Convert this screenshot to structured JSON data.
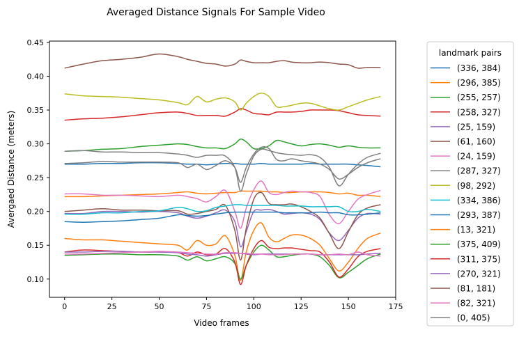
{
  "chart_data": {
    "type": "line",
    "title": "Averaged Distance Signals For Sample Video",
    "xlabel": "Video frames",
    "ylabel": "Avergaed Distance (meters)",
    "xlim": [
      -8,
      175
    ],
    "ylim": [
      0.073,
      0.452
    ],
    "x_ticks": [
      0,
      25,
      50,
      75,
      100,
      125,
      150,
      175
    ],
    "x_tick_labels": [
      "0",
      "25",
      "50",
      "75",
      "100",
      "125",
      "150",
      "175"
    ],
    "y_ticks": [
      0.1,
      0.15,
      0.2,
      0.25,
      0.3,
      0.35,
      0.4,
      0.45
    ],
    "y_tick_labels": [
      "0.10",
      "0.15",
      "0.20",
      "0.25",
      "0.30",
      "0.35",
      "0.40",
      "0.45"
    ],
    "grid": false,
    "legend": {
      "title": "landmark pairs",
      "position": "outside-right"
    },
    "x_frames": [
      0,
      10,
      20,
      30,
      40,
      50,
      60,
      65,
      70,
      75,
      80,
      85,
      90,
      93,
      96,
      100,
      104,
      108,
      112,
      116,
      120,
      125,
      130,
      135,
      140,
      145,
      150,
      155,
      160,
      167
    ],
    "series": [
      {
        "name": "(336, 384)",
        "color": "#1f77b4",
        "values": [
          0.27,
          0.27,
          0.271,
          0.271,
          0.272,
          0.272,
          0.271,
          0.27,
          0.27,
          0.269,
          0.27,
          0.271,
          0.271,
          0.27,
          0.27,
          0.27,
          0.271,
          0.27,
          0.27,
          0.27,
          0.27,
          0.27,
          0.271,
          0.27,
          0.27,
          0.27,
          0.27,
          0.269,
          0.268,
          0.266
        ]
      },
      {
        "name": "(296, 385)",
        "color": "#ff7f0e",
        "values": [
          0.222,
          0.222,
          0.223,
          0.224,
          0.225,
          0.226,
          0.228,
          0.229,
          0.227,
          0.226,
          0.227,
          0.228,
          0.228,
          0.23,
          0.23,
          0.23,
          0.23,
          0.229,
          0.229,
          0.228,
          0.228,
          0.229,
          0.229,
          0.229,
          0.228,
          0.226,
          0.227,
          0.224,
          0.224,
          0.222
        ]
      },
      {
        "name": "(255, 257)",
        "color": "#2ca02c",
        "values": [
          0.289,
          0.29,
          0.292,
          0.293,
          0.296,
          0.298,
          0.3,
          0.299,
          0.296,
          0.294,
          0.294,
          0.293,
          0.3,
          0.307,
          0.303,
          0.293,
          0.293,
          0.297,
          0.305,
          0.303,
          0.3,
          0.297,
          0.299,
          0.3,
          0.298,
          0.295,
          0.297,
          0.295,
          0.294,
          0.294
        ]
      },
      {
        "name": "(258, 327)",
        "color": "#d62728",
        "values": [
          0.335,
          0.337,
          0.338,
          0.34,
          0.343,
          0.346,
          0.347,
          0.345,
          0.342,
          0.342,
          0.342,
          0.341,
          0.347,
          0.352,
          0.35,
          0.345,
          0.344,
          0.343,
          0.347,
          0.347,
          0.347,
          0.348,
          0.35,
          0.35,
          0.35,
          0.349,
          0.346,
          0.343,
          0.342,
          0.341
        ]
      },
      {
        "name": "(25, 159)",
        "color": "#9467bd",
        "values": [
          0.197,
          0.197,
          0.2,
          0.2,
          0.199,
          0.2,
          0.198,
          0.193,
          0.19,
          0.193,
          0.198,
          0.202,
          0.185,
          0.148,
          0.17,
          0.2,
          0.202,
          0.203,
          0.2,
          0.196,
          0.197,
          0.198,
          0.196,
          0.188,
          0.168,
          0.157,
          0.172,
          0.19,
          0.197,
          0.196
        ]
      },
      {
        "name": "(61, 160)",
        "color": "#8c564b",
        "values": [
          0.2,
          0.202,
          0.204,
          0.202,
          0.202,
          0.201,
          0.201,
          0.196,
          0.197,
          0.2,
          0.203,
          0.209,
          0.172,
          0.128,
          0.175,
          0.218,
          0.228,
          0.212,
          0.21,
          0.21,
          0.211,
          0.207,
          0.2,
          0.19,
          0.167,
          0.145,
          0.17,
          0.195,
          0.205,
          0.21
        ]
      },
      {
        "name": "(24, 159)",
        "color": "#e377c2",
        "values": [
          0.226,
          0.226,
          0.224,
          0.224,
          0.223,
          0.222,
          0.224,
          0.222,
          0.219,
          0.214,
          0.222,
          0.231,
          0.2,
          0.175,
          0.205,
          0.232,
          0.245,
          0.228,
          0.225,
          0.228,
          0.23,
          0.229,
          0.228,
          0.222,
          0.195,
          0.182,
          0.2,
          0.218,
          0.225,
          0.231
        ]
      },
      {
        "name": "(287, 327)",
        "color": "#7f7f7f",
        "values": [
          0.289,
          0.29,
          0.288,
          0.288,
          0.287,
          0.287,
          0.285,
          0.283,
          0.28,
          0.283,
          0.283,
          0.282,
          0.265,
          0.23,
          0.255,
          0.282,
          0.292,
          0.29,
          0.287,
          0.285,
          0.284,
          0.283,
          0.284,
          0.28,
          0.265,
          0.238,
          0.255,
          0.27,
          0.28,
          0.286
        ]
      },
      {
        "name": "(98, 292)",
        "color": "#bcbd22",
        "values": [
          0.374,
          0.371,
          0.37,
          0.369,
          0.367,
          0.365,
          0.361,
          0.358,
          0.37,
          0.362,
          0.366,
          0.368,
          0.362,
          0.35,
          0.36,
          0.37,
          0.375,
          0.37,
          0.355,
          0.355,
          0.357,
          0.36,
          0.36,
          0.356,
          0.352,
          0.35,
          0.355,
          0.36,
          0.365,
          0.37
        ]
      },
      {
        "name": "(334, 386)",
        "color": "#17becf",
        "values": [
          0.196,
          0.196,
          0.198,
          0.198,
          0.2,
          0.201,
          0.206,
          0.204,
          0.2,
          0.201,
          0.206,
          0.208,
          0.21,
          0.21,
          0.209,
          0.209,
          0.209,
          0.209,
          0.209,
          0.208,
          0.208,
          0.208,
          0.207,
          0.207,
          0.207,
          0.207,
          0.2,
          0.2,
          0.203,
          0.2
        ]
      },
      {
        "name": "(293, 387)",
        "color": "#1f77b4",
        "values": [
          0.185,
          0.184,
          0.185,
          0.186,
          0.188,
          0.19,
          0.195,
          0.194,
          0.193,
          0.194,
          0.196,
          0.198,
          0.199,
          0.199,
          0.199,
          0.199,
          0.199,
          0.199,
          0.199,
          0.198,
          0.198,
          0.198,
          0.198,
          0.199,
          0.198,
          0.198,
          0.195,
          0.195,
          0.196,
          0.198
        ]
      },
      {
        "name": "(13, 321)",
        "color": "#ff7f0e",
        "values": [
          0.16,
          0.158,
          0.158,
          0.156,
          0.154,
          0.152,
          0.15,
          0.143,
          0.157,
          0.15,
          0.152,
          0.164,
          0.135,
          0.098,
          0.14,
          0.172,
          0.183,
          0.162,
          0.155,
          0.16,
          0.165,
          0.165,
          0.16,
          0.15,
          0.13,
          0.112,
          0.125,
          0.145,
          0.16,
          0.168
        ]
      },
      {
        "name": "(375, 409)",
        "color": "#2ca02c",
        "values": [
          0.135,
          0.136,
          0.137,
          0.137,
          0.136,
          0.136,
          0.134,
          0.128,
          0.133,
          0.127,
          0.13,
          0.133,
          0.123,
          0.1,
          0.12,
          0.14,
          0.15,
          0.143,
          0.133,
          0.133,
          0.135,
          0.137,
          0.137,
          0.133,
          0.12,
          0.102,
          0.11,
          0.12,
          0.13,
          0.137
        ]
      },
      {
        "name": "(311, 375)",
        "color": "#d62728",
        "values": [
          0.14,
          0.143,
          0.142,
          0.141,
          0.14,
          0.14,
          0.139,
          0.134,
          0.14,
          0.136,
          0.137,
          0.145,
          0.125,
          0.092,
          0.12,
          0.145,
          0.157,
          0.147,
          0.145,
          0.146,
          0.146,
          0.144,
          0.142,
          0.14,
          0.125,
          0.103,
          0.115,
          0.133,
          0.141,
          0.145
        ]
      },
      {
        "name": "(270, 321)",
        "color": "#9467bd",
        "values": [
          0.14,
          0.14,
          0.141,
          0.141,
          0.14,
          0.14,
          0.139,
          0.137,
          0.136,
          0.134,
          0.136,
          0.138,
          0.138,
          0.138,
          0.137,
          0.136,
          0.137,
          0.137,
          0.137,
          0.137,
          0.137,
          0.137,
          0.137,
          0.136,
          0.136,
          0.136,
          0.136,
          0.136,
          0.137,
          0.138
        ]
      },
      {
        "name": "(81, 181)",
        "color": "#8c564b",
        "values": [
          0.412,
          0.418,
          0.423,
          0.425,
          0.428,
          0.433,
          0.429,
          0.425,
          0.422,
          0.419,
          0.418,
          0.415,
          0.418,
          0.424,
          0.422,
          0.42,
          0.42,
          0.42,
          0.422,
          0.423,
          0.421,
          0.42,
          0.42,
          0.421,
          0.42,
          0.418,
          0.417,
          0.412,
          0.413,
          0.413
        ]
      },
      {
        "name": "(82, 321)",
        "color": "#e377c2",
        "values": [
          0.137,
          0.137,
          0.138,
          0.139,
          0.14,
          0.141,
          0.14,
          0.139,
          0.138,
          0.137,
          0.137,
          0.139,
          0.139,
          0.138,
          0.138,
          0.137,
          0.137,
          0.136,
          0.136,
          0.136,
          0.137,
          0.137,
          0.137,
          0.136,
          0.136,
          0.137,
          0.136,
          0.14,
          0.136,
          0.134
        ]
      },
      {
        "name": "(0, 405)",
        "color": "#7f7f7f",
        "values": [
          0.271,
          0.272,
          0.274,
          0.273,
          0.273,
          0.273,
          0.272,
          0.265,
          0.27,
          0.262,
          0.268,
          0.275,
          0.265,
          0.243,
          0.265,
          0.285,
          0.295,
          0.293,
          0.277,
          0.275,
          0.278,
          0.275,
          0.273,
          0.27,
          0.262,
          0.248,
          0.255,
          0.265,
          0.272,
          0.278
        ]
      }
    ]
  }
}
